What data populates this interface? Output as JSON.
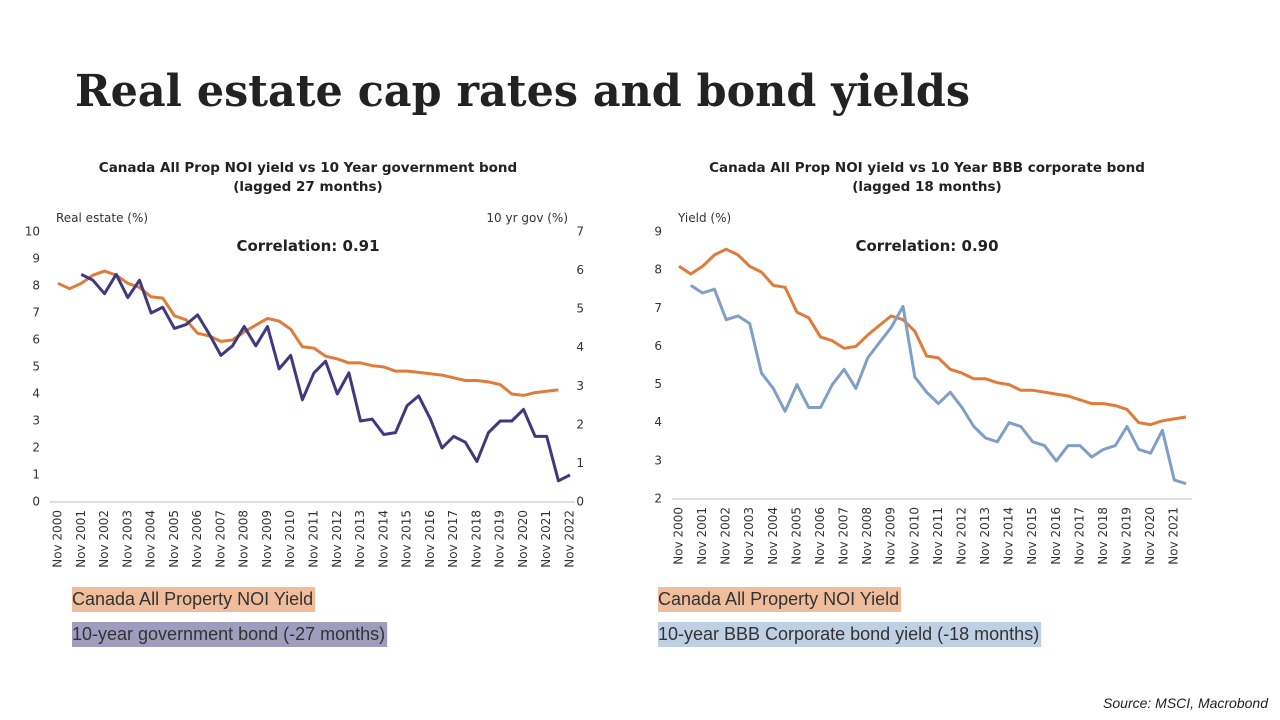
{
  "title": "Real estate cap rates and bond yields",
  "source": "Source: MSCI, Macrobond",
  "chart_data": [
    {
      "type": "line",
      "title": "Canada All Prop NOI yield vs 10 Year government bond",
      "subtitle": "(lagged 27 months)",
      "annotation": "Correlation: 0.91",
      "ylabel": "Real estate (%)",
      "y2label": "10 yr gov (%)",
      "ylim": [
        0,
        10
      ],
      "yticks": [
        0,
        1,
        2,
        3,
        4,
        5,
        6,
        7,
        8,
        9,
        10
      ],
      "y2lim": [
        0,
        7
      ],
      "y2ticks": [
        0,
        1,
        2,
        3,
        4,
        5,
        6,
        7
      ],
      "categories": [
        "Nov 2000",
        null,
        "Nov 2001",
        null,
        "Nov 2002",
        null,
        "Nov 2003",
        null,
        "Nov 2004",
        null,
        "Nov 2005",
        null,
        "Nov 2006",
        null,
        "Nov 2007",
        null,
        "Nov 2008",
        null,
        "Nov 2009",
        null,
        "Nov 2010",
        null,
        "Nov 2011",
        null,
        "Nov 2012",
        null,
        "Nov 2013",
        null,
        "Nov 2014",
        null,
        "Nov 2015",
        null,
        "Nov 2016",
        null,
        "Nov 2017",
        null,
        "Nov 2018",
        null,
        "Nov 2019",
        null,
        "Nov 2020",
        null,
        "Nov 2021",
        null,
        "Nov 2022"
      ],
      "series": [
        {
          "name": "Canada All Property NOI Yield",
          "color": "#e07b39",
          "values": [
            8.1,
            7.9,
            8.1,
            8.4,
            8.55,
            8.4,
            8.1,
            7.95,
            7.6,
            7.55,
            6.9,
            6.75,
            6.25,
            6.15,
            5.95,
            6.0,
            6.3,
            6.55,
            6.8,
            6.7,
            6.4,
            5.75,
            5.7,
            5.4,
            5.3,
            5.15,
            5.15,
            5.05,
            5.0,
            4.85,
            4.85,
            4.8,
            4.75,
            4.7,
            4.6,
            4.5,
            4.5,
            4.45,
            4.35,
            4.0,
            3.95,
            4.05,
            4.1,
            4.15,
            null
          ]
        },
        {
          "name": "10-year government bond (-27 months)",
          "color": "#3f3a7e",
          "axis": "y2",
          "values": [
            null,
            null,
            5.9,
            5.75,
            5.4,
            5.9,
            5.3,
            5.75,
            4.9,
            5.05,
            4.5,
            4.6,
            4.85,
            4.35,
            3.8,
            4.05,
            4.55,
            4.05,
            4.55,
            3.45,
            3.8,
            2.65,
            3.35,
            3.65,
            2.8,
            3.35,
            2.1,
            2.15,
            1.75,
            1.8,
            2.5,
            2.75,
            2.15,
            1.4,
            1.7,
            1.55,
            1.05,
            1.8,
            2.1,
            2.1,
            2.4,
            1.7,
            1.7,
            0.55,
            0.7
          ]
        }
      ]
    },
    {
      "type": "line",
      "title": "Canada All Prop NOI yield vs 10 Year BBB corporate  bond",
      "subtitle": "(lagged 18 months)",
      "annotation": "Correlation: 0.90",
      "ylabel": "Yield (%)",
      "ylim": [
        2,
        9
      ],
      "yticks": [
        2,
        3,
        4,
        5,
        6,
        7,
        8,
        9
      ],
      "categories": [
        "Nov 2000",
        null,
        "Nov 2001",
        null,
        "Nov 2002",
        null,
        "Nov 2003",
        null,
        "Nov 2004",
        null,
        "Nov 2005",
        null,
        "Nov 2006",
        null,
        "Nov 2007",
        null,
        "Nov 2008",
        null,
        "Nov 2009",
        null,
        "Nov 2010",
        null,
        "Nov 2011",
        null,
        "Nov 2012",
        null,
        "Nov 2013",
        null,
        "Nov 2014",
        null,
        "Nov 2015",
        null,
        "Nov 2016",
        null,
        "Nov 2017",
        null,
        "Nov 2018",
        null,
        "Nov 2019",
        null,
        "Nov 2020",
        null,
        "Nov 2021",
        null
      ],
      "series": [
        {
          "name": "Canada All Property NOI Yield",
          "color": "#e07b39",
          "values": [
            8.1,
            7.9,
            8.1,
            8.4,
            8.55,
            8.4,
            8.1,
            7.95,
            7.6,
            7.55,
            6.9,
            6.75,
            6.25,
            6.15,
            5.95,
            6.0,
            6.3,
            6.55,
            6.8,
            6.7,
            6.4,
            5.75,
            5.7,
            5.4,
            5.3,
            5.15,
            5.15,
            5.05,
            5.0,
            4.85,
            4.85,
            4.8,
            4.75,
            4.7,
            4.6,
            4.5,
            4.5,
            4.45,
            4.35,
            4.0,
            3.95,
            4.05,
            4.1,
            4.15
          ]
        },
        {
          "name": "10-year BBB Corporate bond yield (-18 months)",
          "color": "#7f9fc9",
          "values": [
            null,
            7.6,
            7.4,
            7.5,
            6.7,
            6.8,
            6.6,
            5.3,
            4.9,
            4.3,
            5.0,
            4.4,
            4.4,
            5.0,
            5.4,
            4.9,
            5.7,
            6.1,
            6.5,
            7.05,
            5.2,
            4.8,
            4.5,
            4.8,
            4.4,
            3.9,
            3.6,
            3.5,
            4.0,
            3.9,
            3.5,
            3.4,
            3.0,
            3.4,
            3.4,
            3.1,
            3.3,
            3.4,
            3.9,
            3.3,
            3.2,
            3.8,
            2.5,
            2.4
          ]
        }
      ]
    }
  ]
}
